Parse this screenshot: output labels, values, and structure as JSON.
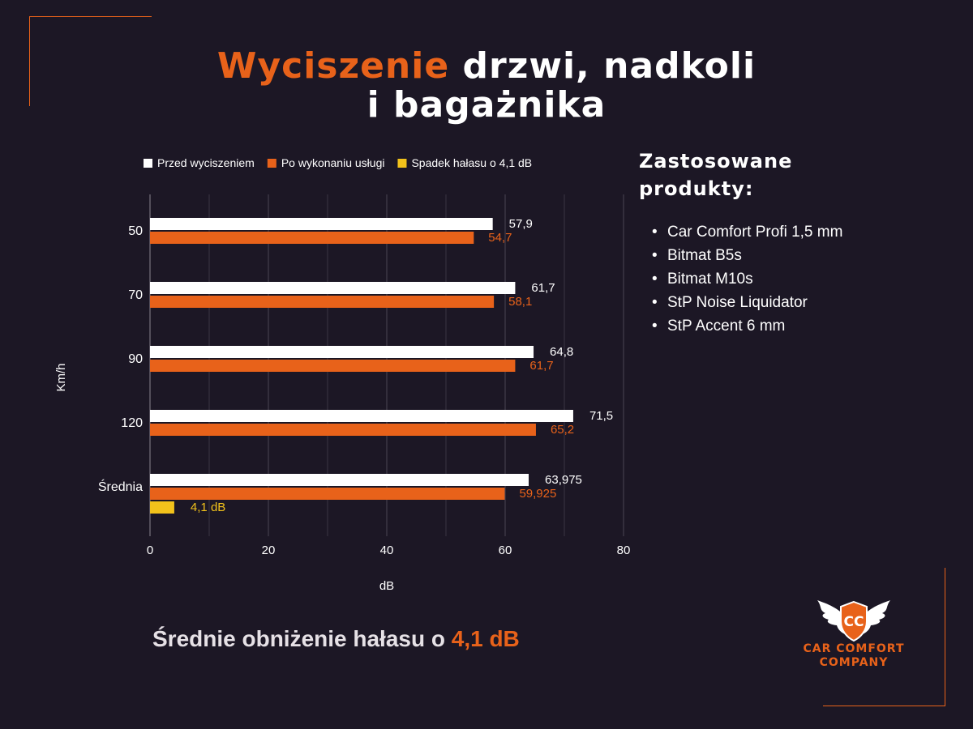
{
  "title": {
    "accent": "Wyciszenie",
    "rest_line1": "drzwi, nadkoli",
    "line2": "i bagażnika"
  },
  "colors": {
    "accent": "#e8621a",
    "before": "#ffffff",
    "after": "#e8621a",
    "drop": "#f2c21b",
    "background": "#1c1725"
  },
  "chart_data": {
    "type": "bar",
    "orientation": "horizontal",
    "categories": [
      "50",
      "70",
      "90",
      "120",
      "Średnia"
    ],
    "series": [
      {
        "name": "Przed wyciszeniem",
        "values": [
          57.9,
          61.7,
          64.8,
          71.5,
          63.975
        ],
        "labels": [
          "57,9",
          "61,7",
          "64,8",
          "71,5",
          "63,975"
        ],
        "color": "#ffffff"
      },
      {
        "name": "Po wykonaniu usługi",
        "values": [
          54.7,
          58.1,
          61.7,
          65.2,
          59.925
        ],
        "labels": [
          "54,7",
          "58,1",
          "61,7",
          "65,2",
          "59,925"
        ],
        "color": "#e8621a"
      },
      {
        "name": "Spadek hałasu o 4,1 dB",
        "values": [
          null,
          null,
          null,
          null,
          4.1
        ],
        "labels": [
          "",
          "",
          "",
          "",
          "4,1 dB"
        ],
        "color": "#f2c21b"
      }
    ],
    "xlabel": "dB",
    "ylabel": "Km/h",
    "xlim": [
      0,
      80
    ],
    "xticks": [
      0,
      20,
      40,
      60,
      80
    ],
    "grid": true,
    "legend_position": "top"
  },
  "products": {
    "heading": "Zastosowane produkty:",
    "items": [
      "Car Comfort Profi 1,5 mm",
      "Bitmat B5s",
      "Bitmat M10s",
      "StP Noise Liquidator",
      "StP Accent 6 mm"
    ]
  },
  "summary": {
    "text": "Średnie obniżenie hałasu o ",
    "value": "4,1 dB"
  },
  "logo": {
    "badge": "CC",
    "line1": "CAR COMFORT",
    "line2": "COMPANY"
  }
}
